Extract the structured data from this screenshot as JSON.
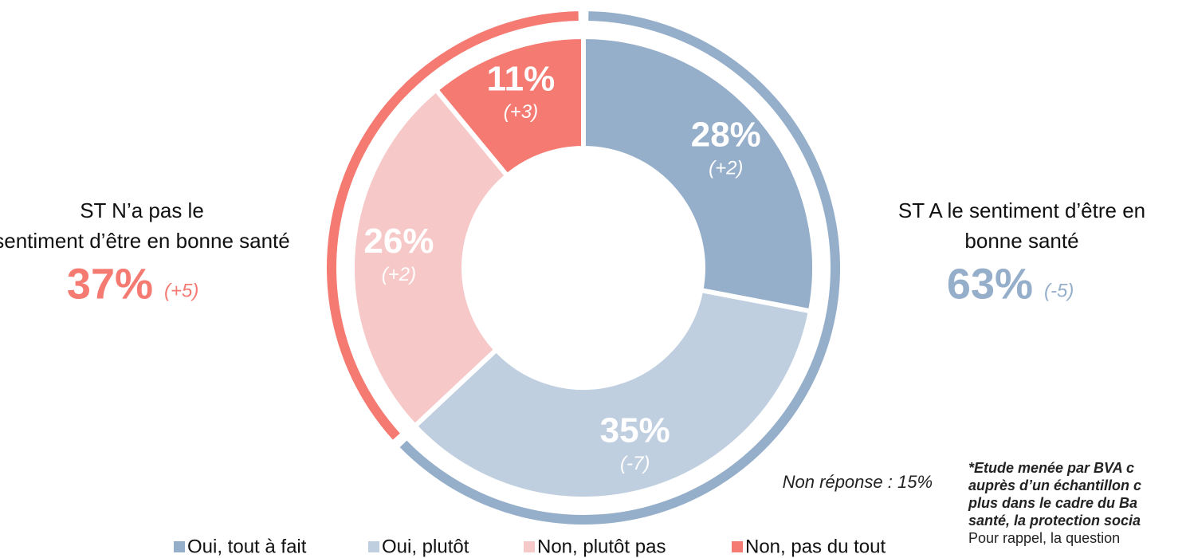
{
  "chart_data": {
    "type": "donut",
    "categories": [
      "Oui, tout à fait",
      "Oui, plutôt",
      "Non, plutôt pas",
      "Non, pas du tout"
    ],
    "values": [
      28,
      35,
      26,
      11
    ],
    "value_labels": [
      "28%",
      "35%",
      "26%",
      "11%"
    ],
    "changes": [
      "(+2)",
      "(-7)",
      "(+2)",
      "(+3)"
    ],
    "colors": [
      "#95aec9",
      "#bfcfe0",
      "#f7c8c8",
      "#f47a72"
    ],
    "groups": [
      {
        "label": "ST A le sentiment d’être en bonne santé",
        "value": 63,
        "value_label": "63%",
        "change": "(-5)",
        "color": "#95aec9"
      },
      {
        "label": "ST N’a pas le sentiment d’être en bonne santé",
        "value": 37,
        "value_label": "37%",
        "change": "(+5)",
        "color": "#f47a72"
      }
    ],
    "annotation": "Non réponse : 15%",
    "footnote": [
      "*Etude menée par BVA c",
      "auprès d’un échantillon c",
      "plus dans le cadre du Ba",
      "santé, la protection socia",
      "Pour rappel, la question"
    ]
  }
}
